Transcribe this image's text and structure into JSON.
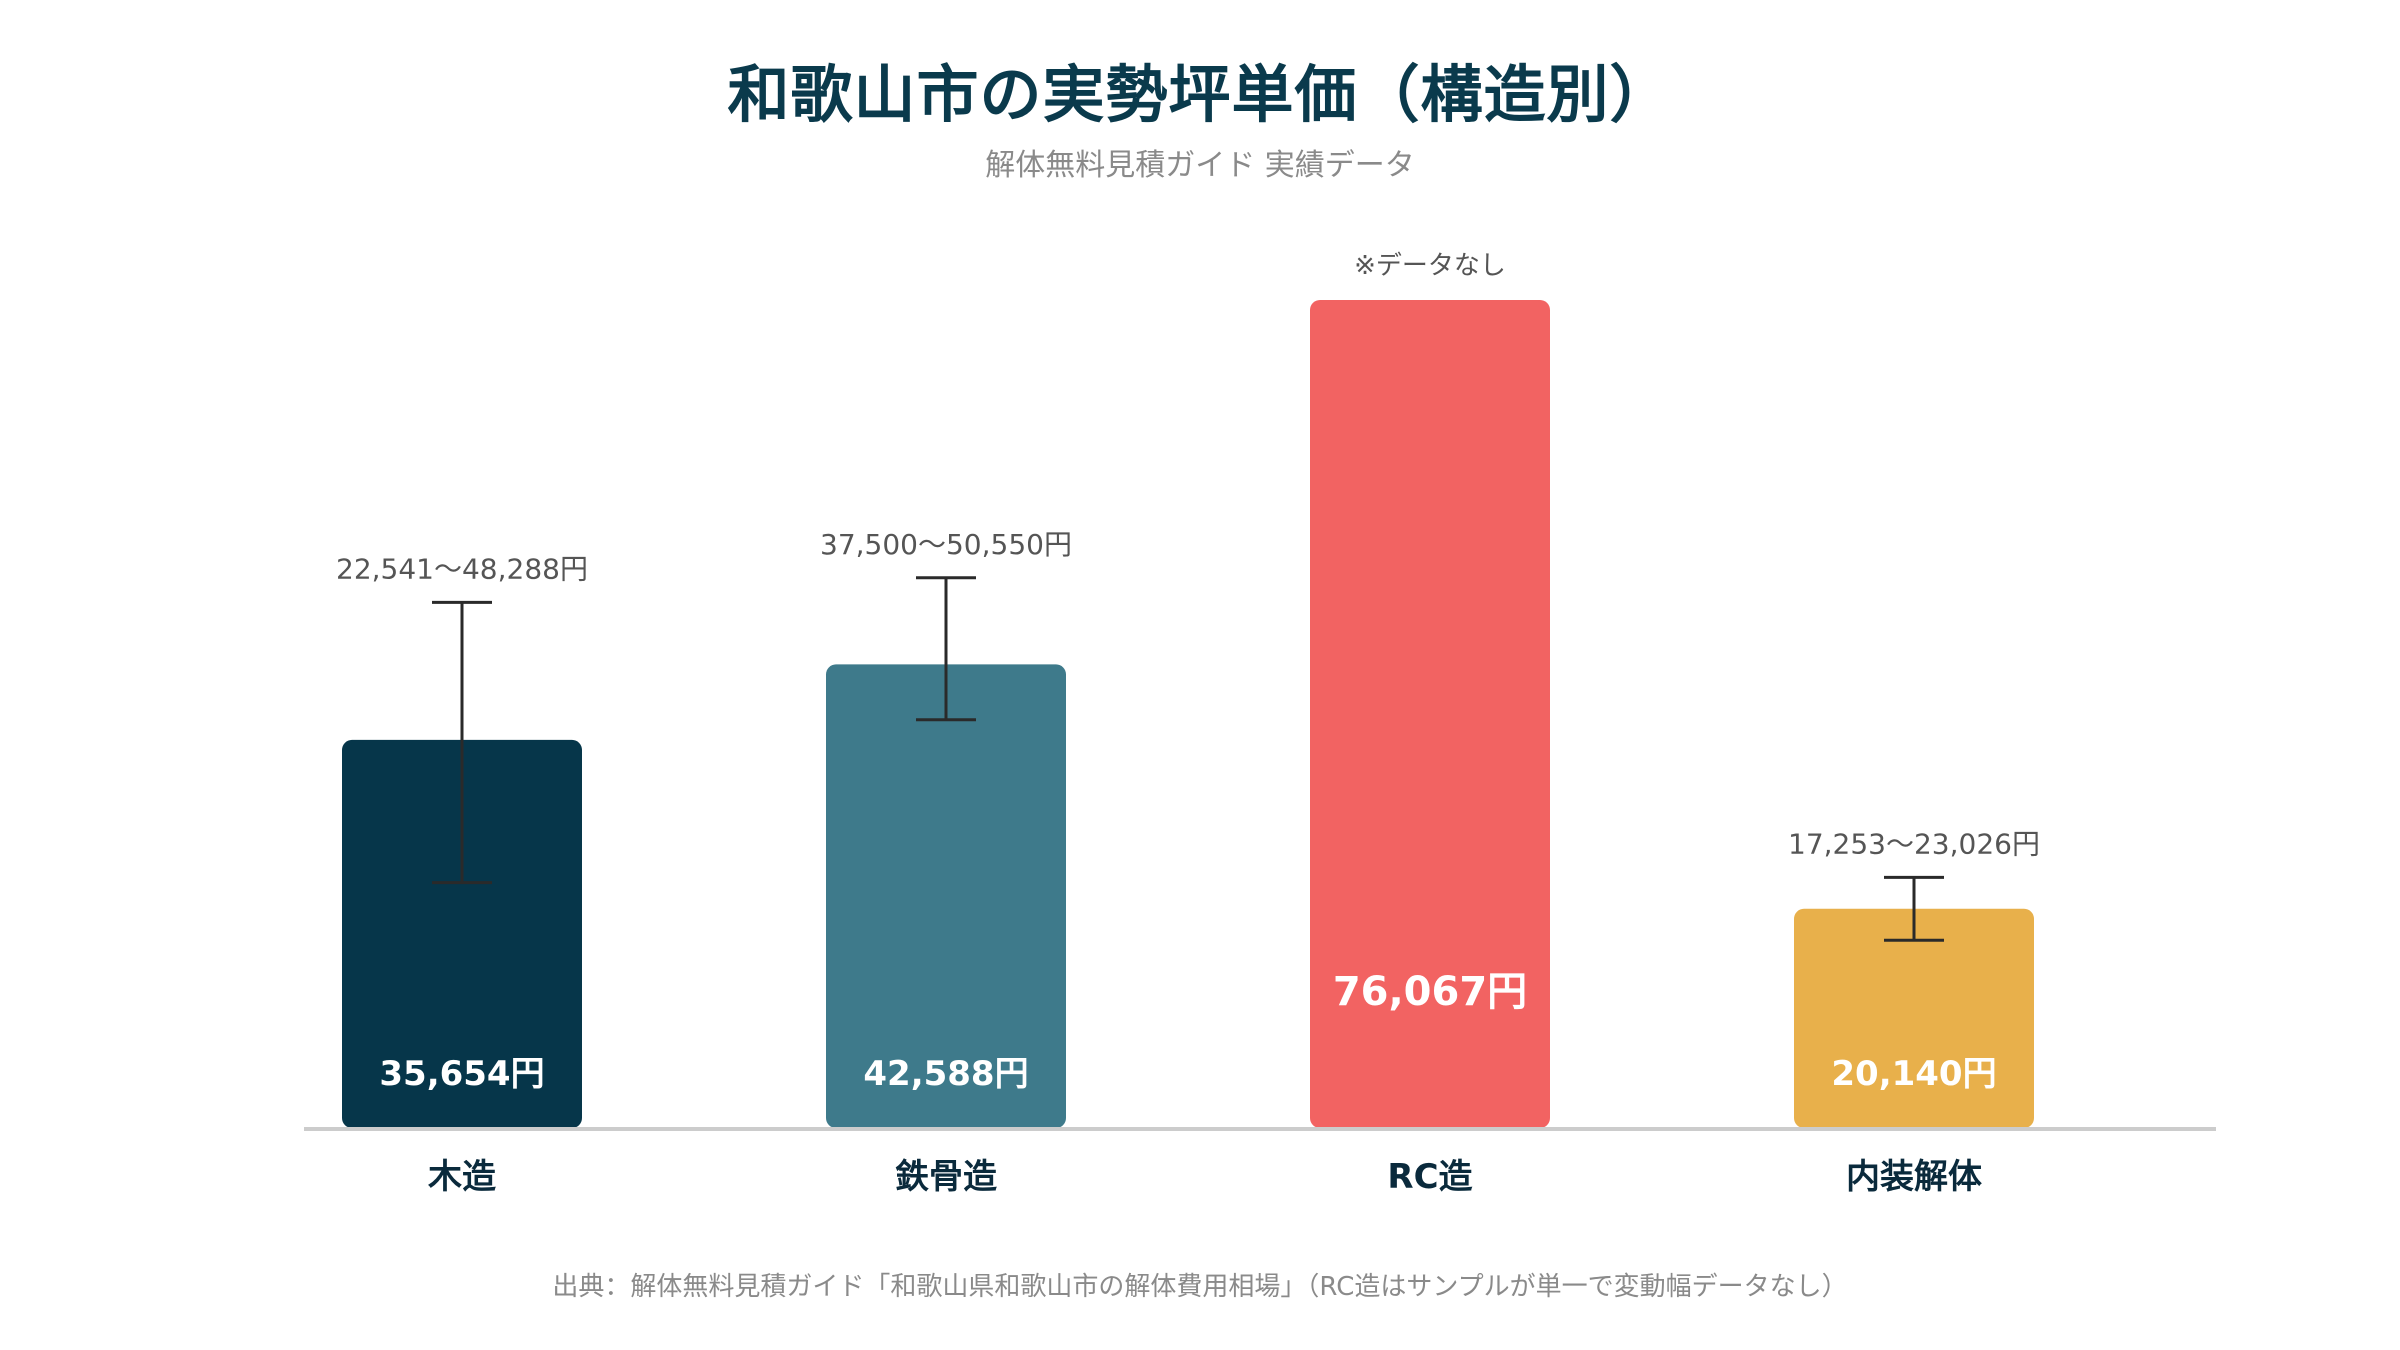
{
  "title": "和歌山市の実勢坪単価（構造別）",
  "subtitle": "解体無料見積ガイド 実績データ",
  "source": "出典：解体無料見積ガイド「和歌山県和歌山市の解体費用相場」（RC造はサンプルが単一で変動幅データなし）",
  "chart_data": {
    "type": "bar",
    "categories": [
      "木造",
      "鉄骨造",
      "RC造",
      "内装解体"
    ],
    "values": [
      35654,
      42588,
      76067,
      20140
    ],
    "value_labels": [
      "35,654円",
      "42,588円",
      "76,067円",
      "20,140円"
    ],
    "ranges": [
      [
        22541,
        48288
      ],
      [
        37500,
        50550
      ],
      null,
      [
        17253,
        23026
      ]
    ],
    "range_labels": [
      "22,541〜48,288円",
      "37,500〜50,550円",
      "※データなし",
      "17,253〜23,026円"
    ],
    "colors": [
      "#06364a",
      "#3e7a8b",
      "#f26362",
      "#e8b04b"
    ],
    "ylim": [
      0,
      80000
    ],
    "grid": false,
    "xlabel": "",
    "ylabel": ""
  }
}
